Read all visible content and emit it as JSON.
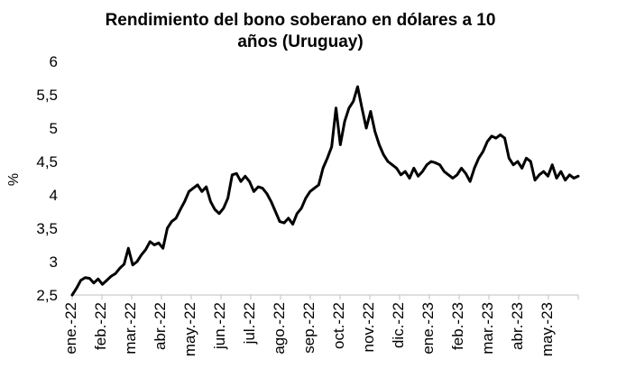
{
  "chart_data": {
    "type": "line",
    "title_line1": "Rendimiento del bono soberano en dólares a 10",
    "title_line2": "años (Uruguay)",
    "ylabel": "%",
    "xlabel": "",
    "ylim": [
      2.5,
      6
    ],
    "yticks": [
      "2,5",
      "3",
      "3,5",
      "4",
      "4,5",
      "5",
      "5,5",
      "6"
    ],
    "yvalues": [
      2.5,
      3,
      3.5,
      4,
      4.5,
      5,
      5.5,
      6
    ],
    "xticks": [
      "ene.-22",
      "feb.-22",
      "mar.-22",
      "abr.-22",
      "may.-22",
      "jun.-22",
      "jul.-22",
      "ago.-22",
      "sep.-22",
      "oct.-22",
      "nov.-22",
      "dic.-22",
      "ene.-23",
      "feb.-23",
      "mar.-23",
      "abr.-23",
      "may.-23"
    ],
    "grid": false,
    "legend": "none",
    "line_color": "#000000",
    "series": [
      {
        "values": [
          2.5,
          2.6,
          2.72,
          2.76,
          2.75,
          2.68,
          2.74,
          2.66,
          2.72,
          2.78,
          2.82,
          2.9,
          2.96,
          3.2,
          2.95,
          3.0,
          3.1,
          3.18,
          3.3,
          3.25,
          3.28,
          3.2,
          3.5,
          3.6,
          3.65,
          3.78,
          3.9,
          4.05,
          4.1,
          4.15,
          4.05,
          4.12,
          3.9,
          3.78,
          3.72,
          3.8,
          3.95,
          4.3,
          4.32,
          4.2,
          4.28,
          4.2,
          4.05,
          4.12,
          4.1,
          4.02,
          3.9,
          3.75,
          3.6,
          3.58,
          3.65,
          3.56,
          3.72,
          3.8,
          3.95,
          4.05,
          4.1,
          4.15,
          4.4,
          4.55,
          4.72,
          5.3,
          4.75,
          5.1,
          5.3,
          5.4,
          5.62,
          5.3,
          5.0,
          5.25,
          4.95,
          4.75,
          4.6,
          4.5,
          4.45,
          4.4,
          4.3,
          4.35,
          4.25,
          4.4,
          4.28,
          4.35,
          4.45,
          4.5,
          4.48,
          4.45,
          4.35,
          4.3,
          4.25,
          4.3,
          4.4,
          4.32,
          4.2,
          4.4,
          4.55,
          4.65,
          4.8,
          4.88,
          4.85,
          4.9,
          4.85,
          4.55,
          4.45,
          4.5,
          4.4,
          4.55,
          4.5,
          4.22,
          4.3,
          4.35,
          4.28,
          4.45,
          4.25,
          4.35,
          4.22,
          4.3,
          4.25,
          4.28
        ]
      }
    ]
  }
}
